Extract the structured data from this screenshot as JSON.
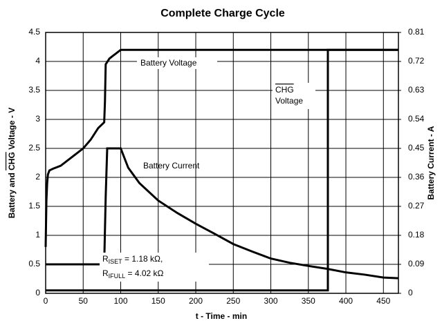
{
  "chart_data": {
    "type": "line",
    "title": "Complete Charge Cycle",
    "xlabel": "t - Time - min",
    "ylabel": {
      "before": "Battery and ",
      "overline": "CHG",
      "after": " Voltage - V"
    },
    "y2label": "Battery Current - A",
    "xlim": [
      0,
      470
    ],
    "xticks": [
      0,
      50,
      100,
      150,
      200,
      250,
      300,
      350,
      400,
      450
    ],
    "ylim": [
      0,
      4.5
    ],
    "yticks": [
      0,
      0.5,
      1,
      1.5,
      2,
      2.5,
      3,
      3.5,
      4,
      4.5
    ],
    "y2lim": [
      0,
      0.81
    ],
    "y2ticks": [
      0,
      0.09,
      0.18,
      0.27,
      0.36,
      0.45,
      0.54,
      0.63,
      0.72,
      0.81
    ],
    "grid": true,
    "series": [
      {
        "name": "Battery Voltage",
        "color": "#000000",
        "x": [
          0,
          1,
          2,
          3,
          5,
          10,
          20,
          30,
          40,
          50,
          60,
          70,
          78,
          79,
          80,
          85,
          90,
          95,
          100,
          470
        ],
        "values": [
          0.8,
          1.6,
          1.9,
          2.05,
          2.12,
          2.15,
          2.2,
          2.3,
          2.4,
          2.5,
          2.65,
          2.85,
          2.95,
          3.3,
          3.95,
          4.05,
          4.1,
          4.15,
          4.2,
          4.2
        ]
      },
      {
        "color": "#000000",
        "x": [
          0,
          376,
          376,
          470
        ],
        "values": [
          0.05,
          0.05,
          4.2,
          4.2
        ]
      },
      {
        "name": "Battery Current",
        "color": "#000000",
        "axis": "y2",
        "x": [
          0,
          78,
          80,
          82,
          100,
          110,
          125,
          150,
          175,
          200,
          225,
          250,
          275,
          300,
          325,
          350,
          375,
          400,
          425,
          450,
          470
        ],
        "values": [
          0.09,
          0.09,
          0.3,
          0.45,
          0.45,
          0.39,
          0.342,
          0.288,
          0.25,
          0.216,
          0.185,
          0.153,
          0.13,
          0.108,
          0.095,
          0.085,
          0.076,
          0.065,
          0.058,
          0.049,
          0.047
        ]
      }
    ],
    "chg_label": [
      "CHG",
      "Voltage"
    ],
    "resistors": [
      {
        "main": "R",
        "sub": "ISET",
        "rest": " = 1.18 kΩ,"
      },
      {
        "main": "R",
        "sub": "IFULL",
        "rest": " = 4.02 kΩ"
      }
    ]
  }
}
